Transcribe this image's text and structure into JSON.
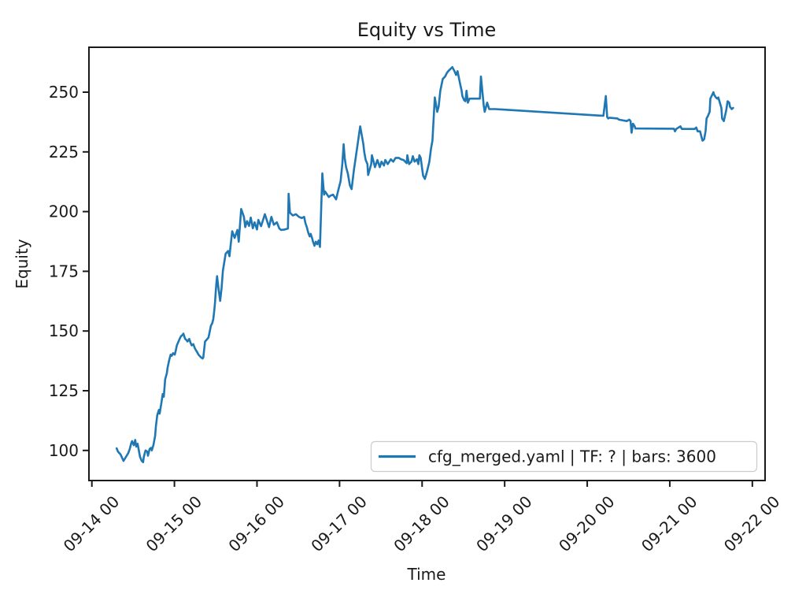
{
  "figure": {
    "title": "Equity vs Time",
    "xlabel": "Time",
    "ylabel": "Equity"
  },
  "legend": {
    "label": "cfg_merged.yaml | TF: ? | bars: 3600",
    "location": "lower right"
  },
  "colors": {
    "line": "#1f77b4",
    "spine": "#1a1a1a",
    "legend_border": "#cccccc",
    "background": "#ffffff"
  },
  "chart_data": {
    "type": "line",
    "title": "Equity vs Time",
    "xlabel": "Time",
    "ylabel": "Equity",
    "grid": false,
    "legend_position": "lower right",
    "x_unit": "hours after 09-14 00:00",
    "x_tick_positions": [
      0,
      24,
      48,
      72,
      96,
      120,
      144,
      168,
      192
    ],
    "x_tick_labels": [
      "09-14 00",
      "09-15 00",
      "09-16 00",
      "09-17 00",
      "09-18 00",
      "09-19 00",
      "09-20 00",
      "09-21 00",
      "09-22 00"
    ],
    "x_tick_rotation_deg": 45,
    "y_ticks": [
      100,
      125,
      150,
      175,
      200,
      225,
      250
    ],
    "xlim": [
      -0.85,
      195.7
    ],
    "ylim": [
      87.4,
      268.8
    ],
    "series": [
      {
        "name": "cfg_merged.yaml | TF: ? | bars: 3600",
        "color": "#1f77b4",
        "points": [
          [
            7.2,
            100.9
          ],
          [
            7.6,
            99.5
          ],
          [
            8.3,
            98.4
          ],
          [
            9.2,
            95.6
          ],
          [
            9.9,
            97.3
          ],
          [
            10.6,
            98.9
          ],
          [
            11.0,
            100.6
          ],
          [
            11.5,
            103.3
          ],
          [
            11.7,
            103.9
          ],
          [
            12.2,
            102.2
          ],
          [
            12.6,
            104.4
          ],
          [
            12.9,
            101.6
          ],
          [
            13.3,
            102.8
          ],
          [
            13.8,
            98.9
          ],
          [
            14.0,
            97.3
          ],
          [
            14.5,
            95.6
          ],
          [
            14.9,
            95.1
          ],
          [
            15.1,
            97.3
          ],
          [
            15.6,
            100.0
          ],
          [
            16.1,
            99.5
          ],
          [
            16.3,
            97.8
          ],
          [
            16.8,
            100.6
          ],
          [
            17.2,
            101.1
          ],
          [
            17.4,
            100.0
          ],
          [
            17.9,
            102.2
          ],
          [
            18.4,
            106.1
          ],
          [
            18.6,
            109.9
          ],
          [
            19.0,
            114.8
          ],
          [
            19.5,
            117.0
          ],
          [
            19.7,
            115.4
          ],
          [
            20.2,
            119.8
          ],
          [
            20.6,
            123.6
          ],
          [
            20.9,
            122.5
          ],
          [
            21.3,
            129.7
          ],
          [
            21.8,
            132.4
          ],
          [
            22.0,
            134.6
          ],
          [
            22.5,
            137.9
          ],
          [
            22.9,
            140.1
          ],
          [
            23.2,
            139.6
          ],
          [
            23.6,
            140.7
          ],
          [
            24.1,
            140.1
          ],
          [
            24.3,
            141.2
          ],
          [
            24.7,
            144.0
          ],
          [
            25.2,
            145.6
          ],
          [
            25.5,
            146.7
          ],
          [
            25.9,
            147.8
          ],
          [
            26.4,
            148.4
          ],
          [
            26.6,
            148.9
          ],
          [
            27.1,
            146.7
          ],
          [
            27.5,
            146.2
          ],
          [
            27.8,
            145.6
          ],
          [
            28.3,
            146.7
          ],
          [
            28.7,
            145.1
          ],
          [
            29.0,
            144.0
          ],
          [
            29.5,
            144.5
          ],
          [
            29.9,
            142.9
          ],
          [
            30.1,
            142.3
          ],
          [
            30.6,
            141.2
          ],
          [
            31.0,
            140.1
          ],
          [
            31.3,
            139.6
          ],
          [
            31.7,
            139.0
          ],
          [
            32.2,
            138.5
          ],
          [
            32.4,
            139.0
          ],
          [
            32.9,
            145.6
          ],
          [
            33.3,
            146.2
          ],
          [
            33.9,
            147.3
          ],
          [
            34.3,
            150.0
          ],
          [
            34.6,
            152.2
          ],
          [
            35.0,
            153.3
          ],
          [
            35.3,
            155.0
          ],
          [
            35.6,
            158.8
          ],
          [
            35.8,
            162.0
          ],
          [
            36.0,
            166.0
          ],
          [
            36.2,
            170.0
          ],
          [
            36.4,
            173.0
          ],
          [
            36.8,
            168.0
          ],
          [
            37.3,
            162.6
          ],
          [
            37.7,
            168.0
          ],
          [
            38.1,
            175.3
          ],
          [
            38.9,
            182.4
          ],
          [
            39.6,
            183.5
          ],
          [
            40.0,
            181.3
          ],
          [
            40.8,
            191.8
          ],
          [
            41.5,
            189.0
          ],
          [
            42.3,
            192.3
          ],
          [
            42.7,
            187.4
          ],
          [
            43.4,
            201.1
          ],
          [
            44.2,
            197.8
          ],
          [
            44.6,
            193.5
          ],
          [
            45.1,
            196.0
          ],
          [
            45.7,
            194.0
          ],
          [
            46.2,
            197.5
          ],
          [
            46.8,
            193.0
          ],
          [
            47.3,
            195.5
          ],
          [
            48.0,
            192.5
          ],
          [
            48.4,
            196.5
          ],
          [
            49.2,
            193.9
          ],
          [
            50.3,
            198.9
          ],
          [
            51.5,
            193.5
          ],
          [
            52.2,
            197.8
          ],
          [
            52.9,
            194.5
          ],
          [
            53.8,
            195.5
          ],
          [
            54.5,
            192.9
          ],
          [
            55.0,
            192.3
          ],
          [
            56.1,
            192.5
          ],
          [
            57.0,
            192.9
          ],
          [
            57.2,
            207.5
          ],
          [
            57.6,
            199.5
          ],
          [
            58.4,
            198.4
          ],
          [
            59.3,
            198.9
          ],
          [
            60.2,
            197.8
          ],
          [
            61.0,
            197.3
          ],
          [
            61.7,
            197.8
          ],
          [
            62.1,
            195.1
          ],
          [
            62.5,
            193.4
          ],
          [
            62.9,
            191.2
          ],
          [
            63.3,
            189.6
          ],
          [
            63.6,
            190.7
          ],
          [
            64.0,
            189.0
          ],
          [
            64.3,
            187.4
          ],
          [
            64.7,
            185.7
          ],
          [
            65.1,
            187.4
          ],
          [
            65.5,
            186.3
          ],
          [
            65.9,
            187.9
          ],
          [
            66.3,
            185.2
          ],
          [
            67.0,
            216.0
          ],
          [
            67.5,
            207.1
          ],
          [
            67.8,
            208.4
          ],
          [
            68.9,
            206.1
          ],
          [
            69.4,
            206.7
          ],
          [
            70.1,
            207.1
          ],
          [
            71.0,
            205.1
          ],
          [
            71.7,
            209.4
          ],
          [
            72.3,
            212.7
          ],
          [
            72.8,
            219.9
          ],
          [
            73.2,
            228.2
          ],
          [
            73.5,
            222.5
          ],
          [
            73.9,
            218.6
          ],
          [
            74.4,
            216.0
          ],
          [
            75.0,
            211.0
          ],
          [
            75.5,
            209.4
          ],
          [
            76.2,
            217.6
          ],
          [
            76.6,
            221.6
          ],
          [
            78.0,
            235.7
          ],
          [
            78.9,
            228.5
          ],
          [
            79.2,
            224.9
          ],
          [
            79.6,
            221.6
          ],
          [
            80.1,
            219.9
          ],
          [
            80.3,
            215.3
          ],
          [
            81.2,
            219.9
          ],
          [
            81.4,
            223.6
          ],
          [
            82.3,
            218.6
          ],
          [
            83.0,
            221.6
          ],
          [
            83.7,
            218.6
          ],
          [
            84.2,
            220.9
          ],
          [
            84.9,
            219.3
          ],
          [
            85.3,
            221.6
          ],
          [
            86.0,
            219.9
          ],
          [
            86.9,
            221.9
          ],
          [
            87.6,
            220.9
          ],
          [
            88.3,
            222.5
          ],
          [
            89.2,
            222.5
          ],
          [
            89.9,
            221.9
          ],
          [
            90.6,
            221.6
          ],
          [
            91.5,
            220.3
          ],
          [
            91.7,
            223.6
          ],
          [
            92.2,
            219.9
          ],
          [
            92.9,
            220.9
          ],
          [
            93.3,
            223.2
          ],
          [
            93.8,
            220.9
          ],
          [
            94.5,
            221.9
          ],
          [
            94.9,
            219.9
          ],
          [
            95.2,
            223.6
          ],
          [
            95.6,
            222.5
          ],
          [
            96.1,
            217.0
          ],
          [
            96.3,
            215.0
          ],
          [
            96.8,
            213.7
          ],
          [
            97.4,
            216.6
          ],
          [
            98.1,
            220.9
          ],
          [
            98.6,
            226.4
          ],
          [
            99.0,
            229.7
          ],
          [
            99.7,
            247.8
          ],
          [
            100.4,
            241.8
          ],
          [
            100.8,
            244.0
          ],
          [
            101.3,
            250.6
          ],
          [
            102.0,
            255.5
          ],
          [
            102.7,
            256.6
          ],
          [
            103.2,
            258.0
          ],
          [
            103.6,
            258.8
          ],
          [
            104.8,
            260.5
          ],
          [
            105.5,
            258.5
          ],
          [
            105.9,
            257.2
          ],
          [
            106.3,
            258.8
          ],
          [
            107.0,
            253.9
          ],
          [
            107.5,
            250.6
          ],
          [
            107.7,
            248.4
          ],
          [
            108.2,
            246.7
          ],
          [
            108.6,
            246.2
          ],
          [
            108.9,
            250.6
          ],
          [
            109.3,
            245.6
          ],
          [
            109.8,
            247.3
          ],
          [
            112.8,
            247.3
          ],
          [
            113.1,
            256.6
          ],
          [
            113.9,
            244.6
          ],
          [
            114.2,
            241.8
          ],
          [
            114.9,
            245.6
          ],
          [
            115.5,
            242.9
          ],
          [
            117.3,
            242.9
          ],
          [
            148.7,
            240.1
          ],
          [
            149.4,
            248.4
          ],
          [
            149.8,
            239.6
          ],
          [
            150.1,
            239.0
          ],
          [
            150.5,
            239.3
          ],
          [
            152.8,
            239.0
          ],
          [
            153.2,
            238.5
          ],
          [
            155.5,
            237.9
          ],
          [
            156.2,
            238.5
          ],
          [
            156.6,
            237.9
          ],
          [
            156.9,
            233.0
          ],
          [
            157.3,
            236.8
          ],
          [
            157.8,
            235.7
          ],
          [
            158.0,
            234.8
          ],
          [
            169.2,
            234.7
          ],
          [
            169.5,
            233.6
          ],
          [
            169.9,
            234.6
          ],
          [
            171.1,
            235.7
          ],
          [
            171.5,
            234.6
          ],
          [
            175.2,
            234.6
          ],
          [
            175.7,
            235.2
          ],
          [
            176.1,
            233.6
          ],
          [
            176.8,
            233.6
          ],
          [
            177.3,
            230.8
          ],
          [
            177.5,
            229.7
          ],
          [
            178.0,
            230.3
          ],
          [
            178.4,
            233.6
          ],
          [
            178.7,
            239.0
          ],
          [
            179.1,
            240.1
          ],
          [
            179.6,
            241.8
          ],
          [
            179.8,
            247.3
          ],
          [
            180.7,
            250.0
          ],
          [
            180.9,
            248.9
          ],
          [
            181.4,
            247.8
          ],
          [
            181.8,
            247.3
          ],
          [
            182.1,
            247.8
          ],
          [
            183.0,
            243.4
          ],
          [
            183.2,
            239.0
          ],
          [
            183.7,
            237.9
          ],
          [
            184.4,
            242.3
          ],
          [
            184.8,
            246.2
          ],
          [
            185.3,
            245.6
          ],
          [
            185.5,
            243.9
          ],
          [
            186.0,
            242.9
          ],
          [
            186.4,
            243.4
          ]
        ]
      }
    ]
  }
}
